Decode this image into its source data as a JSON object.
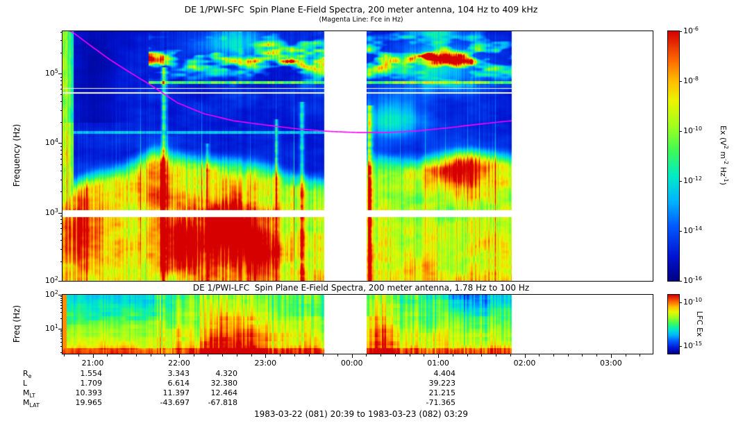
{
  "footer": "1983-03-22 (081) 20:39 to 1983-03-23 (082) 03:29",
  "colors": {
    "fce_line": "#ff00ff",
    "frame": "#000000",
    "page_bg": "#ffffff",
    "text": "#000000"
  },
  "x_axis": {
    "start_min": 1239,
    "end_min": 1649,
    "tick_labels": [
      "21:00",
      "22:00",
      "23:00",
      "00:00",
      "01:00",
      "02:00",
      "03:00"
    ]
  },
  "ephemeris": {
    "rows": [
      {
        "label_main": "R",
        "label_sub": "e",
        "values": [
          "1.554",
          "3.343",
          "4.320",
          "4.404"
        ]
      },
      {
        "label_main": "L",
        "label_sub": "",
        "values": [
          "1.709",
          "6.614",
          "32.380",
          "39.223"
        ]
      },
      {
        "label_main": "M",
        "label_sub": "LT",
        "values": [
          "10.393",
          "11.397",
          "12.464",
          "21.215"
        ]
      },
      {
        "label_main": "M",
        "label_sub": "LAT",
        "values": [
          "19.965",
          "-43.697",
          "-67.818",
          "-71.365"
        ]
      }
    ]
  },
  "chart_data": [
    {
      "type": "heatmap",
      "panel": "SFC",
      "title": "DE 1/PWI-SFC  Spin Plane E-Field Spectra, 200 meter antenna, 104 Hz to 409 kHz",
      "subtitle": "(Magenta Line: Fce in Hz)",
      "ylabel": "Frequency (Hz)",
      "y_scale": "log",
      "y_range_hz": [
        104,
        409000
      ],
      "y_ticks_exp": [
        5,
        4,
        3,
        2
      ],
      "x_tick_labels": [
        "21:00",
        "22:00",
        "23:00",
        "00:00",
        "01:00",
        "02:00",
        "03:00"
      ],
      "time_range": "20:39 to 03:29",
      "colorbar": {
        "label_parts": [
          {
            "t": "Ex (V"
          },
          {
            "s": "2"
          },
          {
            "t": " m"
          },
          {
            "s": "-2"
          },
          {
            "t": " Hz"
          },
          {
            "s": "-1"
          },
          {
            "t": ")"
          }
        ],
        "ticks_exp": [
          -6,
          -8,
          -10,
          -12,
          -14,
          -16
        ]
      },
      "gap": [
        0.443,
        0.515
      ],
      "data_end": 0.761,
      "fce_line_hz": [
        [
          0,
          470000
        ],
        [
          0.02,
          380000
        ],
        [
          0.05,
          245000
        ],
        [
          0.08,
          160000
        ],
        [
          0.11,
          110000
        ],
        [
          0.15,
          68000
        ],
        [
          0.195,
          38000
        ],
        [
          0.24,
          26500
        ],
        [
          0.29,
          21000
        ],
        [
          0.345,
          18200
        ],
        [
          0.4,
          16000
        ],
        [
          0.45,
          14800
        ],
        [
          0.5,
          14200
        ],
        [
          0.55,
          14200
        ],
        [
          0.6,
          15000
        ],
        [
          0.65,
          16500
        ],
        [
          0.7,
          18500
        ],
        [
          0.735,
          20000
        ],
        [
          0.761,
          21000
        ]
      ],
      "colormap_stops": [
        {
          "pos": 0.0,
          "color": "#000082"
        },
        {
          "pos": 0.1,
          "color": "#0014d2"
        },
        {
          "pos": 0.22,
          "color": "#005aff"
        },
        {
          "pos": 0.32,
          "color": "#00b4ff"
        },
        {
          "pos": 0.42,
          "color": "#00ebc8"
        },
        {
          "pos": 0.52,
          "color": "#3cfa5a"
        },
        {
          "pos": 0.62,
          "color": "#a0ff1e"
        },
        {
          "pos": 0.72,
          "color": "#ebf500"
        },
        {
          "pos": 0.8,
          "color": "#ffbe00"
        },
        {
          "pos": 0.88,
          "color": "#ff6e00"
        },
        {
          "pos": 1.0,
          "color": "#d70000"
        }
      ],
      "model": {
        "white_bands": [
          [
            2.94,
            3.045
          ],
          [
            4.715,
            4.74
          ],
          [
            4.788,
            4.802
          ]
        ],
        "lower_edge": [
          [
            0,
            3.35
          ],
          [
            0.05,
            3.6
          ],
          [
            0.1,
            3.7
          ],
          [
            0.155,
            3.95
          ],
          [
            0.2,
            3.85
          ],
          [
            0.27,
            3.8
          ],
          [
            0.33,
            3.75
          ],
          [
            0.38,
            3.6
          ],
          [
            0.443,
            3.5
          ],
          [
            0.515,
            3.85
          ],
          [
            0.6,
            3.8
          ],
          [
            0.68,
            3.9
          ],
          [
            0.761,
            3.85
          ]
        ],
        "lower_base": 0.34,
        "lower_noise": 0.28,
        "akr": {
          "t_start": 0.145,
          "lf_center": 5.25,
          "lf_sigma": 0.32,
          "threshold": 0.38,
          "gain": 2.2
        },
        "akr_line_lf": 4.88,
        "cyan_line": {
          "lf": 4.16,
          "t_end": 0.443
        },
        "left_burst_t": 0.018,
        "dark_patch": {
          "t": 0.055,
          "st": 0.045,
          "lf_min": 4.3,
          "depth": 0.5
        },
        "blobs": [
          {
            "t": 0.035,
            "lf": 2.8,
            "st": 0.035,
            "slf": 0.6,
            "amp": 0.4
          },
          {
            "t": 0.165,
            "lf": 3.3,
            "st": 0.03,
            "slf": 0.55,
            "amp": 0.3
          },
          {
            "t": 0.205,
            "lf": 2.55,
            "st": 0.035,
            "slf": 0.38,
            "amp": 0.5
          },
          {
            "t": 0.285,
            "lf": 2.75,
            "st": 0.05,
            "slf": 0.5,
            "amp": 0.55
          },
          {
            "t": 0.335,
            "lf": 2.45,
            "st": 0.028,
            "slf": 0.35,
            "amp": 0.4
          },
          {
            "t": 0.56,
            "lf": 4.35,
            "st": 0.05,
            "slf": 0.3,
            "amp": 0.32
          },
          {
            "t": 0.675,
            "lf": 3.62,
            "st": 0.05,
            "slf": 0.26,
            "amp": 0.5
          },
          {
            "t": 0.29,
            "lf": 5.45,
            "st": 0.06,
            "slf": 0.22,
            "amp": 0.25
          },
          {
            "t": 0.63,
            "lf": 5.15,
            "st": 0.07,
            "slf": 0.35,
            "amp": 0.3
          }
        ],
        "streaks": [
          {
            "t": 0.172,
            "w": 0.004,
            "amp": 0.55,
            "lfmax": 5.1
          },
          {
            "t": 0.245,
            "w": 0.003,
            "amp": 0.3,
            "lfmax": 4.0
          },
          {
            "t": 0.362,
            "w": 0.003,
            "amp": 0.38,
            "lfmax": 4.35
          },
          {
            "t": 0.405,
            "w": 0.004,
            "amp": 0.32,
            "lfmax": 4.6
          },
          {
            "t": 0.52,
            "w": 0.005,
            "amp": 0.45,
            "lfmax": 4.55
          }
        ]
      }
    },
    {
      "type": "heatmap",
      "panel": "LFC",
      "title": "DE 1/PWI-LFC  Spin Plane E-Field Spectra, 200 meter antenna, 1.78 Hz to 100 Hz",
      "ylabel": "Freq (Hz)",
      "y_scale": "log",
      "y_range_hz": [
        1.78,
        100
      ],
      "y_ticks_exp": [
        2,
        1
      ],
      "x_tick_labels": [
        "21:00",
        "22:00",
        "23:00",
        "00:00",
        "01:00",
        "02:00",
        "03:00"
      ],
      "time_range": "20:39 to 03:29",
      "colorbar": {
        "label": "LFC Ex",
        "ticks": [
          {
            "exp": -10,
            "frac": 0.13
          },
          {
            "exp": -15,
            "frac": 0.87
          }
        ]
      },
      "gap": [
        0.443,
        0.515
      ],
      "data_end": 0.761,
      "model": {
        "rows": 14,
        "base": 0.4,
        "noise": 0.22,
        "bottom_gain": 0.28,
        "stripe_gain": 0.16,
        "left_end": 0.155,
        "left_top_reduce": 0.14,
        "first_col_t": 0.006,
        "bottom_line_u": 0.9,
        "bottom_line_boost": 0.15,
        "red_blobs": [
          {
            "t": 0.3,
            "st": 0.045,
            "amp": 0.3
          },
          {
            "t": 0.255,
            "st": 0.02,
            "amp": 0.2
          },
          {
            "t": 0.545,
            "st": 0.022,
            "amp": 0.26
          }
        ],
        "green_top": {
          "t": 0.695,
          "st": 0.06,
          "amp": 0.26
        }
      }
    }
  ]
}
